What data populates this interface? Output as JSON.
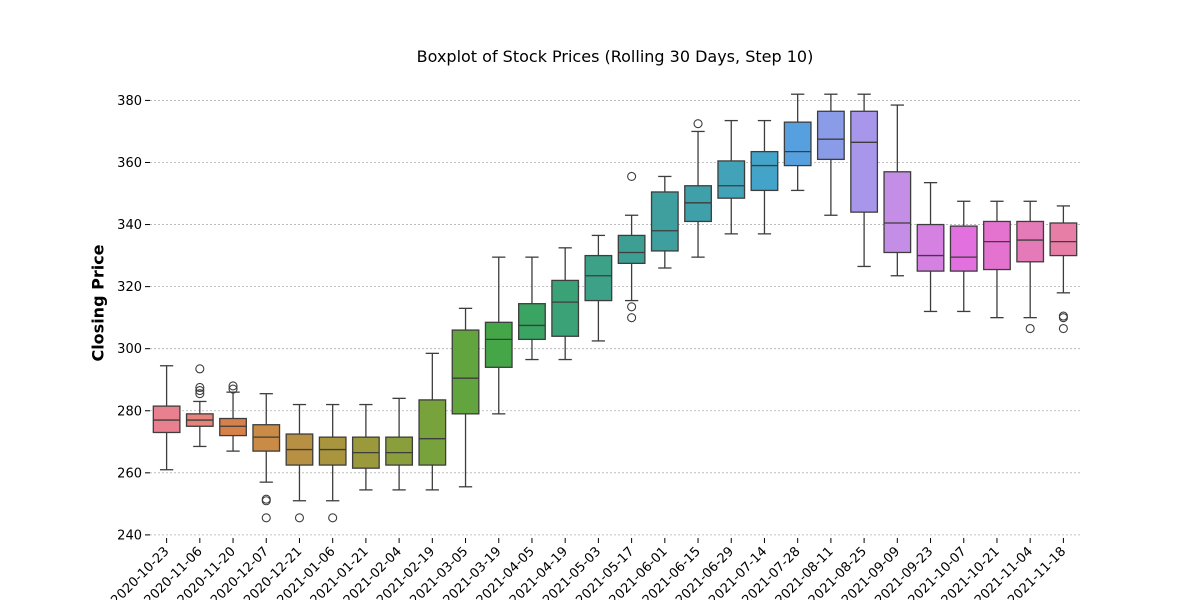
{
  "chart_data": {
    "type": "box",
    "title": "Boxplot of Stock Prices (Rolling 30 Days, Step 10)",
    "xlabel": "",
    "ylabel": "Closing Price",
    "ylim": [
      239,
      384
    ],
    "yticks": [
      240,
      260,
      280,
      300,
      320,
      340,
      360,
      380
    ],
    "grid": "y-dashed",
    "legend": "none",
    "boxes": [
      {
        "label": "2020-10-23",
        "color": "#e8808f",
        "whislo": 261,
        "q1": 273,
        "med": 277,
        "q3": 281.5,
        "whishi": 294.5,
        "fliers": []
      },
      {
        "label": "2020-11-06",
        "color": "#e4847a",
        "whislo": 268.5,
        "q1": 275,
        "med": 277,
        "q3": 279,
        "whishi": 283,
        "fliers": [
          285.5,
          286.5,
          287.5,
          293.5
        ]
      },
      {
        "label": "2020-11-20",
        "color": "#d88049",
        "whislo": 267,
        "q1": 272,
        "med": 275,
        "q3": 277.5,
        "whishi": 286,
        "fliers": [
          287,
          288
        ]
      },
      {
        "label": "2020-12-07",
        "color": "#c98b45",
        "whislo": 257,
        "q1": 267,
        "med": 271.5,
        "q3": 275.5,
        "whishi": 285.5,
        "fliers": [
          245.5,
          251,
          251.5
        ]
      },
      {
        "label": "2020-12-21",
        "color": "#b89043",
        "whislo": 251,
        "q1": 262.5,
        "med": 267.5,
        "q3": 272.5,
        "whishi": 282,
        "fliers": [
          245.5
        ]
      },
      {
        "label": "2021-01-06",
        "color": "#a8953e",
        "whislo": 251,
        "q1": 262.5,
        "med": 267.5,
        "q3": 271.5,
        "whishi": 282,
        "fliers": [
          245.5
        ]
      },
      {
        "label": "2021-01-21",
        "color": "#9a9a3c",
        "whislo": 254.5,
        "q1": 261.5,
        "med": 266.5,
        "q3": 271.5,
        "whishi": 282,
        "fliers": []
      },
      {
        "label": "2021-02-04",
        "color": "#8a9e3b",
        "whislo": 254.5,
        "q1": 262.5,
        "med": 266.5,
        "q3": 271.5,
        "whishi": 284,
        "fliers": []
      },
      {
        "label": "2021-02-19",
        "color": "#78a23b",
        "whislo": 254.5,
        "q1": 262.5,
        "med": 271,
        "q3": 283.5,
        "whishi": 298.5,
        "fliers": []
      },
      {
        "label": "2021-03-05",
        "color": "#62a43e",
        "whislo": 255.5,
        "q1": 279,
        "med": 290.5,
        "q3": 306,
        "whishi": 313,
        "fliers": []
      },
      {
        "label": "2021-03-19",
        "color": "#45a647",
        "whislo": 279,
        "q1": 294,
        "med": 303,
        "q3": 308.5,
        "whishi": 329.5,
        "fliers": []
      },
      {
        "label": "2021-04-05",
        "color": "#3aa462",
        "whislo": 296.5,
        "q1": 303,
        "med": 307.5,
        "q3": 314.5,
        "whishi": 329.5,
        "fliers": []
      },
      {
        "label": "2021-04-19",
        "color": "#3ba277",
        "whislo": 296.5,
        "q1": 304,
        "med": 315,
        "q3": 322,
        "whishi": 332.5,
        "fliers": []
      },
      {
        "label": "2021-05-03",
        "color": "#3ca187",
        "whislo": 302.5,
        "q1": 315.5,
        "med": 323.5,
        "q3": 330,
        "whishi": 336.5,
        "fliers": []
      },
      {
        "label": "2021-05-17",
        "color": "#3d9f93",
        "whislo": 315.5,
        "q1": 327.5,
        "med": 331,
        "q3": 336.5,
        "whishi": 343,
        "fliers": [
          355.5,
          313.5,
          310
        ]
      },
      {
        "label": "2021-06-01",
        "color": "#3f9e9e",
        "whislo": 326,
        "q1": 331.5,
        "med": 338,
        "q3": 350.5,
        "whishi": 355.5,
        "fliers": []
      },
      {
        "label": "2021-06-15",
        "color": "#40a0aa",
        "whislo": 329.5,
        "q1": 341,
        "med": 347,
        "q3": 352.5,
        "whishi": 370,
        "fliers": [
          372.5
        ]
      },
      {
        "label": "2021-06-29",
        "color": "#41a2b8",
        "whislo": 337,
        "q1": 348.5,
        "med": 352.5,
        "q3": 360.5,
        "whishi": 373.5,
        "fliers": []
      },
      {
        "label": "2021-07-14",
        "color": "#44a3c9",
        "whislo": 337,
        "q1": 351,
        "med": 359,
        "q3": 363.5,
        "whishi": 373.5,
        "fliers": []
      },
      {
        "label": "2021-07-28",
        "color": "#56a0e0",
        "whislo": 351,
        "q1": 359,
        "med": 363.5,
        "q3": 373,
        "whishi": 382,
        "fliers": []
      },
      {
        "label": "2021-08-11",
        "color": "#8a9ce8",
        "whislo": 343,
        "q1": 361,
        "med": 367.5,
        "q3": 376.5,
        "whishi": 382,
        "fliers": []
      },
      {
        "label": "2021-08-25",
        "color": "#a796ea",
        "whislo": 326.5,
        "q1": 344,
        "med": 366.5,
        "q3": 376.5,
        "whishi": 382,
        "fliers": []
      },
      {
        "label": "2021-09-09",
        "color": "#c48de6",
        "whislo": 323.5,
        "q1": 331,
        "med": 340.5,
        "q3": 357,
        "whishi": 378.5,
        "fliers": []
      },
      {
        "label": "2021-09-23",
        "color": "#d581e1",
        "whislo": 312,
        "q1": 325,
        "med": 330,
        "q3": 340,
        "whishi": 353.5,
        "fliers": []
      },
      {
        "label": "2021-10-07",
        "color": "#e270df",
        "whislo": 312,
        "q1": 325,
        "med": 329.5,
        "q3": 339.5,
        "whishi": 347.5,
        "fliers": []
      },
      {
        "label": "2021-10-21",
        "color": "#e373cf",
        "whislo": 310,
        "q1": 325.5,
        "med": 334.5,
        "q3": 341,
        "whishi": 347.5,
        "fliers": []
      },
      {
        "label": "2021-11-04",
        "color": "#e47ab8",
        "whislo": 310,
        "q1": 328,
        "med": 335,
        "q3": 341,
        "whishi": 347.5,
        "fliers": [
          306.5
        ]
      },
      {
        "label": "2021-11-18",
        "color": "#e67ea6",
        "whislo": 318,
        "q1": 330,
        "med": 334.5,
        "q3": 340.5,
        "whishi": 346,
        "fliers": [
          306.5,
          310,
          310.5
        ]
      }
    ]
  }
}
